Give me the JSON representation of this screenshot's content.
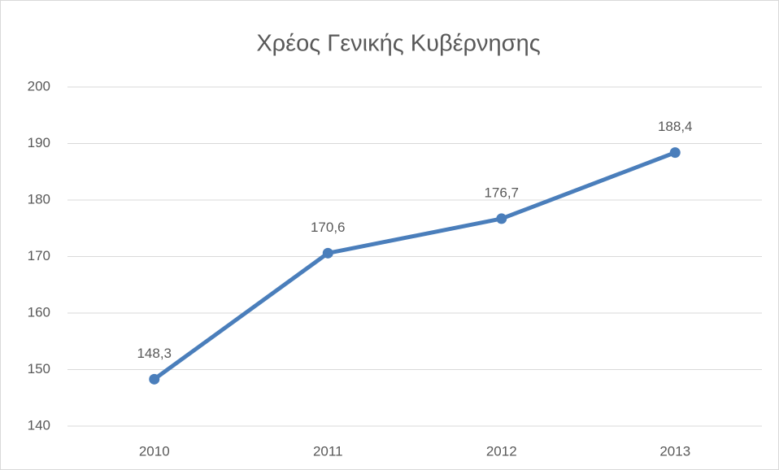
{
  "chart_data": {
    "type": "line",
    "title": "Χρέος Γενικής Κυβέρνησης",
    "categories": [
      "2010",
      "2011",
      "2012",
      "2013"
    ],
    "values": [
      148.3,
      170.6,
      176.7,
      188.4
    ],
    "value_labels": [
      "148,3",
      "170,6",
      "176,7",
      "188,4"
    ],
    "color": "#4a7ebb",
    "ylim": [
      140,
      200
    ],
    "yticks": [
      140,
      150,
      160,
      170,
      180,
      190,
      200
    ],
    "grid": true
  }
}
